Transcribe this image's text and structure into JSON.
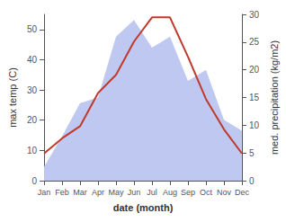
{
  "chart_data": {
    "type": "line",
    "xlabel": "date (month)",
    "ylabel": "max temp (C)",
    "y2label": "med. precipitation (kg/m2)",
    "categories": [
      "Jan",
      "Feb",
      "Mar",
      "Apr",
      "May",
      "Jun",
      "Jul",
      "Aug",
      "Sep",
      "Oct",
      "Nov",
      "Dec"
    ],
    "series": [
      {
        "type": "area",
        "axis": "y2",
        "color": "#bfc8f0",
        "values": [
          2.5,
          8,
          14,
          15,
          26,
          29,
          24,
          26,
          18,
          20,
          11,
          9
        ]
      },
      {
        "type": "line",
        "color": "#c0392b",
        "values": [
          9,
          14,
          18,
          29,
          35,
          46,
          54,
          54,
          41,
          27,
          17,
          9
        ]
      }
    ],
    "ylim": [
      0,
      55
    ],
    "yticks": [
      0,
      10,
      20,
      30,
      40,
      50
    ],
    "y2lim": [
      0,
      30
    ],
    "y2ticks": [
      0,
      5,
      10,
      15,
      20,
      25,
      30
    ],
    "grid": false
  }
}
